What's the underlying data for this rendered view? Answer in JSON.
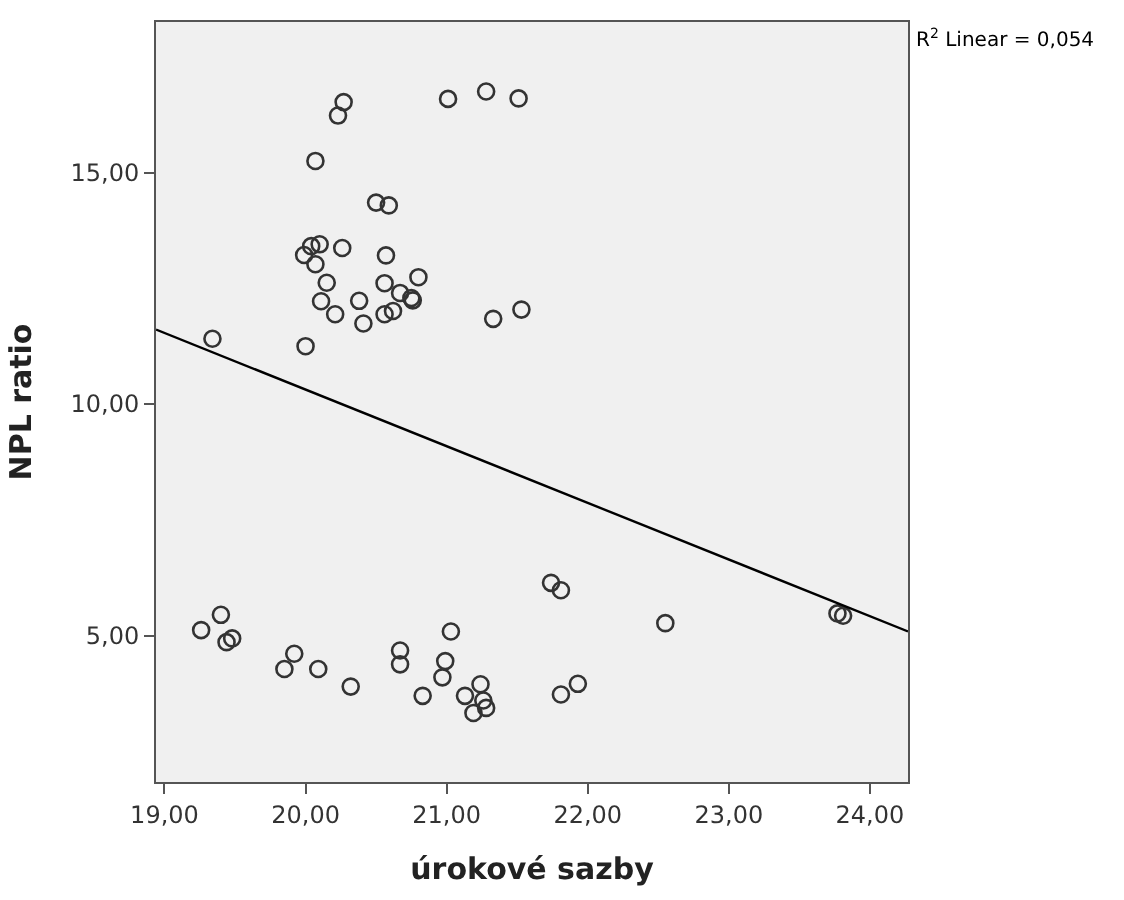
{
  "chart_data": {
    "type": "scatter",
    "xlabel": "úrokové sazby",
    "ylabel": "NPL ratio",
    "annotations": [
      "R$^{2}$ Linear = 0,054"
    ],
    "series": [
      {
        "color": "#333333",
        "marker": "circle",
        "x": [
          20.27,
          20.23,
          21.01,
          21.28,
          21.51,
          20.07,
          20.5,
          20.59,
          19.99,
          20.04,
          20.1,
          20.26,
          20.57,
          20.07,
          20.15,
          20.56,
          20.8,
          20.11,
          20.38,
          20.67,
          20.75,
          20.76,
          20.21,
          20.41,
          20.56,
          20.62,
          21.33,
          21.53,
          20.0,
          19.34,
          19.4,
          19.26,
          19.44,
          19.48,
          19.92,
          19.85,
          20.09,
          20.32,
          20.67,
          20.67,
          20.83,
          21.03,
          20.99,
          20.97,
          21.24,
          21.13,
          21.26,
          21.28,
          21.19,
          21.74,
          21.81,
          21.81,
          21.93,
          22.55,
          23.77,
          23.81
        ],
        "values": [
          16.52,
          16.23,
          16.59,
          16.75,
          16.6,
          15.25,
          14.35,
          14.29,
          13.22,
          13.41,
          13.45,
          13.37,
          13.21,
          13.02,
          12.62,
          12.61,
          12.74,
          12.22,
          12.23,
          12.4,
          12.29,
          12.24,
          11.94,
          11.74,
          11.94,
          12.01,
          11.84,
          12.04,
          11.25,
          11.41,
          5.45,
          5.12,
          4.86,
          4.94,
          4.61,
          4.28,
          4.28,
          3.9,
          4.68,
          4.38,
          3.7,
          5.09,
          4.45,
          4.1,
          3.95,
          3.7,
          3.6,
          3.44,
          3.33,
          6.14,
          5.98,
          3.73,
          3.96,
          5.27,
          5.48,
          5.43
        ]
      },
      {
        "type": "line",
        "color": "#000000",
        "line_style": "solid",
        "x": [
          18.94,
          24.27
        ],
        "values": [
          11.61,
          5.09
        ]
      }
    ],
    "xlim": [
      18.94,
      24.27
    ],
    "ylim": [
      1.84,
      18.25
    ],
    "xticks": [
      {
        "value": 19,
        "label": "19,00"
      },
      {
        "value": 20,
        "label": "20,00"
      },
      {
        "value": 21,
        "label": "21,00"
      },
      {
        "value": 22,
        "label": "22,00"
      },
      {
        "value": 23,
        "label": "23,00"
      },
      {
        "value": 24,
        "label": "24,00"
      }
    ],
    "yticks": [
      {
        "value": 5,
        "label": "5,00"
      },
      {
        "value": 10,
        "label": "10,00"
      },
      {
        "value": 15,
        "label": "15,00"
      }
    ],
    "grid": false,
    "legend": false
  }
}
